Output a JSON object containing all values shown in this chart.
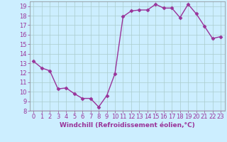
{
  "x": [
    0,
    1,
    2,
    3,
    4,
    5,
    6,
    7,
    8,
    9,
    10,
    11,
    12,
    13,
    14,
    15,
    16,
    17,
    18,
    19,
    20,
    21,
    22,
    23
  ],
  "y": [
    13.2,
    12.5,
    12.2,
    10.3,
    10.4,
    9.8,
    9.3,
    9.3,
    8.4,
    9.6,
    11.9,
    17.9,
    18.5,
    18.6,
    18.6,
    19.2,
    18.8,
    18.8,
    17.8,
    19.2,
    18.2,
    16.9,
    15.6,
    15.8
  ],
  "line_color": "#993399",
  "marker": "D",
  "markersize": 2.5,
  "linewidth": 1.0,
  "background_color": "#cceeff",
  "grid_color": "#aacccc",
  "xlabel": "Windchill (Refroidissement éolien,°C)",
  "xlabel_color": "#993399",
  "xlabel_fontsize": 6.5,
  "tick_color": "#993399",
  "tick_fontsize": 6,
  "xlim": [
    -0.5,
    23.5
  ],
  "ylim": [
    8,
    19.5
  ],
  "yticks": [
    8,
    9,
    10,
    11,
    12,
    13,
    14,
    15,
    16,
    17,
    18,
    19
  ],
  "xticks": [
    0,
    1,
    2,
    3,
    4,
    5,
    6,
    7,
    8,
    9,
    10,
    11,
    12,
    13,
    14,
    15,
    16,
    17,
    18,
    19,
    20,
    21,
    22,
    23
  ]
}
